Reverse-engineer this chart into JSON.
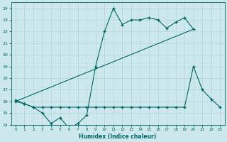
{
  "xlabel": "Humidex (Indice chaleur)",
  "ylabel": "",
  "bg_color": "#cce8ec",
  "grid_color": "#b8d8dc",
  "line_color": "#006666",
  "xlim": [
    -0.5,
    23.5
  ],
  "ylim": [
    14,
    24.5
  ],
  "yticks": [
    14,
    15,
    16,
    17,
    18,
    19,
    20,
    21,
    22,
    23,
    24
  ],
  "xticks": [
    0,
    1,
    2,
    3,
    4,
    5,
    6,
    7,
    8,
    9,
    10,
    11,
    12,
    13,
    14,
    15,
    16,
    17,
    18,
    19,
    20,
    21,
    22,
    23
  ],
  "line1_x": [
    0,
    1,
    2,
    3,
    4,
    5,
    6,
    7,
    8,
    9,
    10,
    11,
    12,
    13,
    14,
    15,
    16,
    17,
    18,
    19,
    20,
    21,
    22,
    23
  ],
  "line1_y": [
    16.1,
    15.8,
    15.5,
    15.0,
    14.1,
    14.6,
    13.7,
    14.1,
    14.8,
    19.0,
    22.0,
    24.0,
    22.6,
    23.0,
    23.0,
    23.2,
    23.0,
    22.3,
    22.8,
    23.2,
    22.2,
    null,
    null,
    null
  ],
  "line2_x": [
    0,
    20
  ],
  "line2_y": [
    16.0,
    22.2
  ],
  "line3_x": [
    0,
    1,
    2,
    3,
    4,
    5,
    6,
    7,
    8,
    9,
    10,
    11,
    12,
    13,
    14,
    15,
    16,
    17,
    18,
    19,
    20,
    21,
    22,
    23
  ],
  "line3_y": [
    16.0,
    15.8,
    15.5,
    15.5,
    15.5,
    15.5,
    15.5,
    15.5,
    15.5,
    15.5,
    15.5,
    15.5,
    15.5,
    15.5,
    15.5,
    15.5,
    15.5,
    15.5,
    15.5,
    15.5,
    19.0,
    17.0,
    16.2,
    15.5
  ],
  "figsize": [
    3.2,
    2.0
  ],
  "dpi": 100
}
